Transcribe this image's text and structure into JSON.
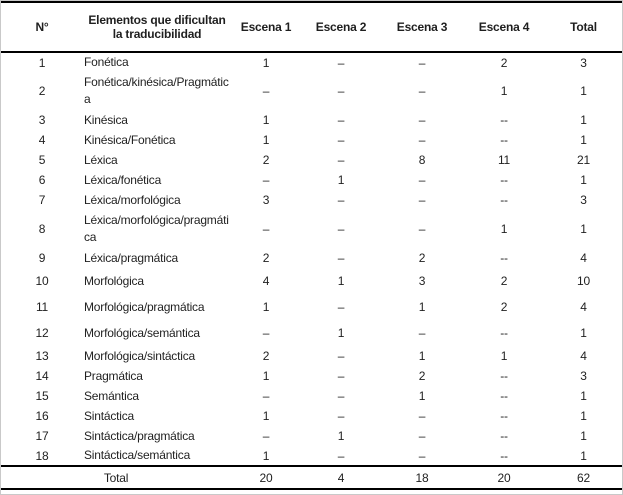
{
  "table": {
    "headers": [
      "N°",
      "Elementos que dificultan la traducibilidad",
      "Escena 1",
      "Escena 2",
      "Escena 3",
      "Escena 4",
      "Total"
    ],
    "rows": [
      {
        "num": "1",
        "label": "Fonética",
        "e1": "1",
        "e2": "–",
        "e3": "–",
        "e4": "2",
        "total": "3"
      },
      {
        "num": "2",
        "label": "Fonética/kinésica/Pragmática",
        "e1": "–",
        "e2": "–",
        "e3": "–",
        "e4": "1",
        "total": "1"
      },
      {
        "num": "3",
        "label": "Kinésica",
        "e1": "1",
        "e2": "–",
        "e3": "–",
        "e4": "--",
        "total": "1"
      },
      {
        "num": "4",
        "label": "Kinésica/Fonética",
        "e1": "1",
        "e2": "–",
        "e3": "–",
        "e4": "--",
        "total": "1"
      },
      {
        "num": "5",
        "label": "Léxica",
        "e1": "2",
        "e2": "–",
        "e3": "8",
        "e4": "11",
        "total": "21"
      },
      {
        "num": "6",
        "label": "Léxica/fonética",
        "e1": "–",
        "e2": "1",
        "e3": "–",
        "e4": "--",
        "total": "1"
      },
      {
        "num": "7",
        "label": "Léxica/morfológica",
        "e1": "3",
        "e2": "–",
        "e3": "–",
        "e4": "--",
        "total": "3"
      },
      {
        "num": "8",
        "label": "Léxica/morfológica/pragmática",
        "e1": "–",
        "e2": "–",
        "e3": "–",
        "e4": "1",
        "total": "1"
      },
      {
        "num": "9",
        "label": "Léxica/pragmática",
        "e1": "2",
        "e2": "–",
        "e3": "2",
        "e4": "--",
        "total": "4"
      },
      {
        "num": "10",
        "label": "Morfológica",
        "e1": "4",
        "e2": "1",
        "e3": "3",
        "e4": "2",
        "total": "10"
      },
      {
        "num": "11",
        "label": "Morfológica/pragmática",
        "e1": "1",
        "e2": "–",
        "e3": "1",
        "e4": "2",
        "total": "4"
      },
      {
        "num": "12",
        "label": "Morfológica/semántica",
        "e1": "–",
        "e2": "1",
        "e3": "–",
        "e4": "--",
        "total": "1"
      },
      {
        "num": "13",
        "label": "Morfológica/sintáctica",
        "e1": "2",
        "e2": "–",
        "e3": "1",
        "e4": "1",
        "total": "4"
      },
      {
        "num": "14",
        "label": "Pragmática",
        "e1": "1",
        "e2": "–",
        "e3": "2",
        "e4": "--",
        "total": "3"
      },
      {
        "num": "15",
        "label": "Semántica",
        "e1": "–",
        "e2": "–",
        "e3": "1",
        "e4": "--",
        "total": "1"
      },
      {
        "num": "16",
        "label": "Sintáctica",
        "e1": "1",
        "e2": "–",
        "e3": "–",
        "e4": "--",
        "total": "1"
      },
      {
        "num": "17",
        "label": "Sintáctica/pragmática",
        "e1": "–",
        "e2": "1",
        "e3": "–",
        "e4": "--",
        "total": "1"
      },
      {
        "num": "18",
        "label": "Sintáctica/semántica",
        "e1": "1",
        "e2": "–",
        "e3": "–",
        "e4": "--",
        "total": "1"
      }
    ],
    "footer": {
      "label": "Total",
      "e1": "20",
      "e2": "4",
      "e3": "18",
      "e4": "20",
      "total": "62"
    }
  },
  "colors": {
    "text": "#1f1f1f",
    "table_border": "#000000",
    "frame_border": "#c9c9c9",
    "background": "#ffffff"
  }
}
